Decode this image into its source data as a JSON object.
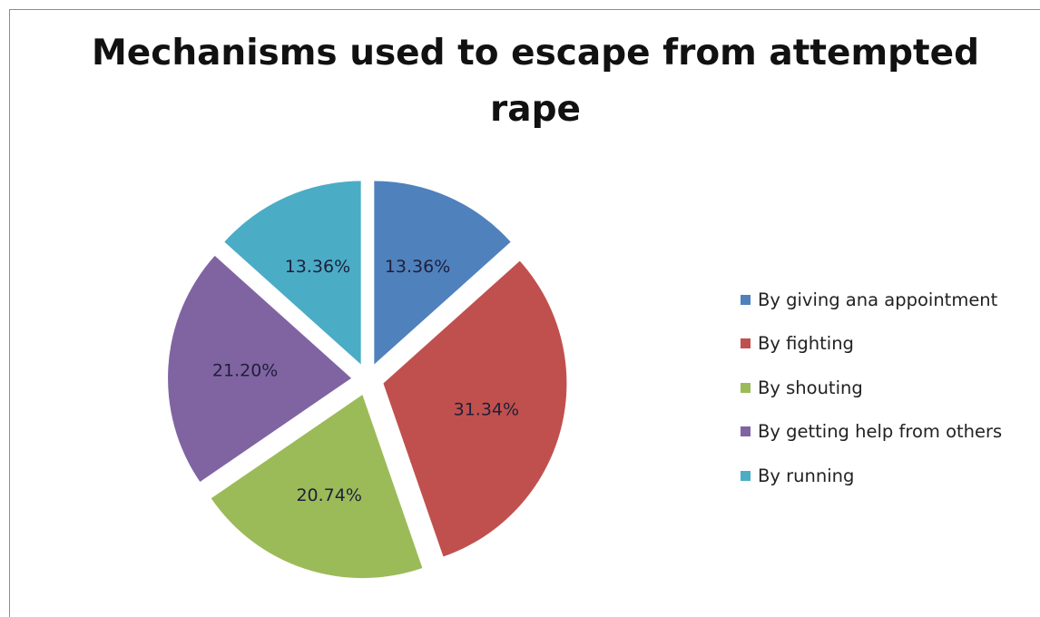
{
  "chart_data": {
    "type": "pie",
    "title": "Mechanisms used to escape from attempted rape",
    "categories": [
      "By giving ana appointment",
      "By fighting",
      "By shouting",
      "By getting help from others",
      "By running"
    ],
    "values": [
      13.36,
      31.34,
      20.74,
      21.2,
      13.36
    ],
    "data_labels": [
      "13.36%",
      "31.34%",
      "20.74%",
      "21.20%",
      "13.36%"
    ],
    "colors": [
      "#4F81BD",
      "#C0504D",
      "#9BBB59",
      "#8064A2",
      "#4BACC6"
    ],
    "exploded": true,
    "legend_position": "right"
  }
}
